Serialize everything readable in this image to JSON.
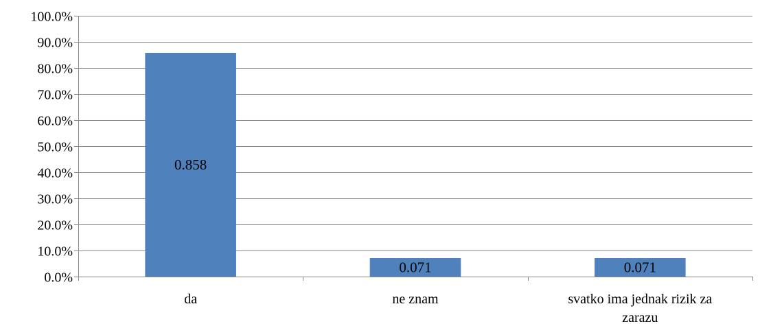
{
  "chart_data": {
    "type": "bar",
    "categories": [
      "da",
      "ne znam",
      "svatko ima jednak rizik za zarazu"
    ],
    "category_label_lines": [
      [
        "da"
      ],
      [
        "ne znam"
      ],
      [
        "svatko ima jednak rizik za",
        "zarazu"
      ]
    ],
    "values": [
      0.858,
      0.071,
      0.071
    ],
    "data_labels": [
      "0.858",
      "0.071",
      "0.071"
    ],
    "y_ticks": [
      "0.0%",
      "10.0%",
      "20.0%",
      "30.0%",
      "40.0%",
      "50.0%",
      "60.0%",
      "70.0%",
      "80.0%",
      "90.0%",
      "100.0%"
    ],
    "ylim": [
      0,
      1
    ],
    "title": "",
    "xlabel": "",
    "ylabel": "",
    "grid": true,
    "legend": "none",
    "bar_color": "#4F81BD"
  }
}
